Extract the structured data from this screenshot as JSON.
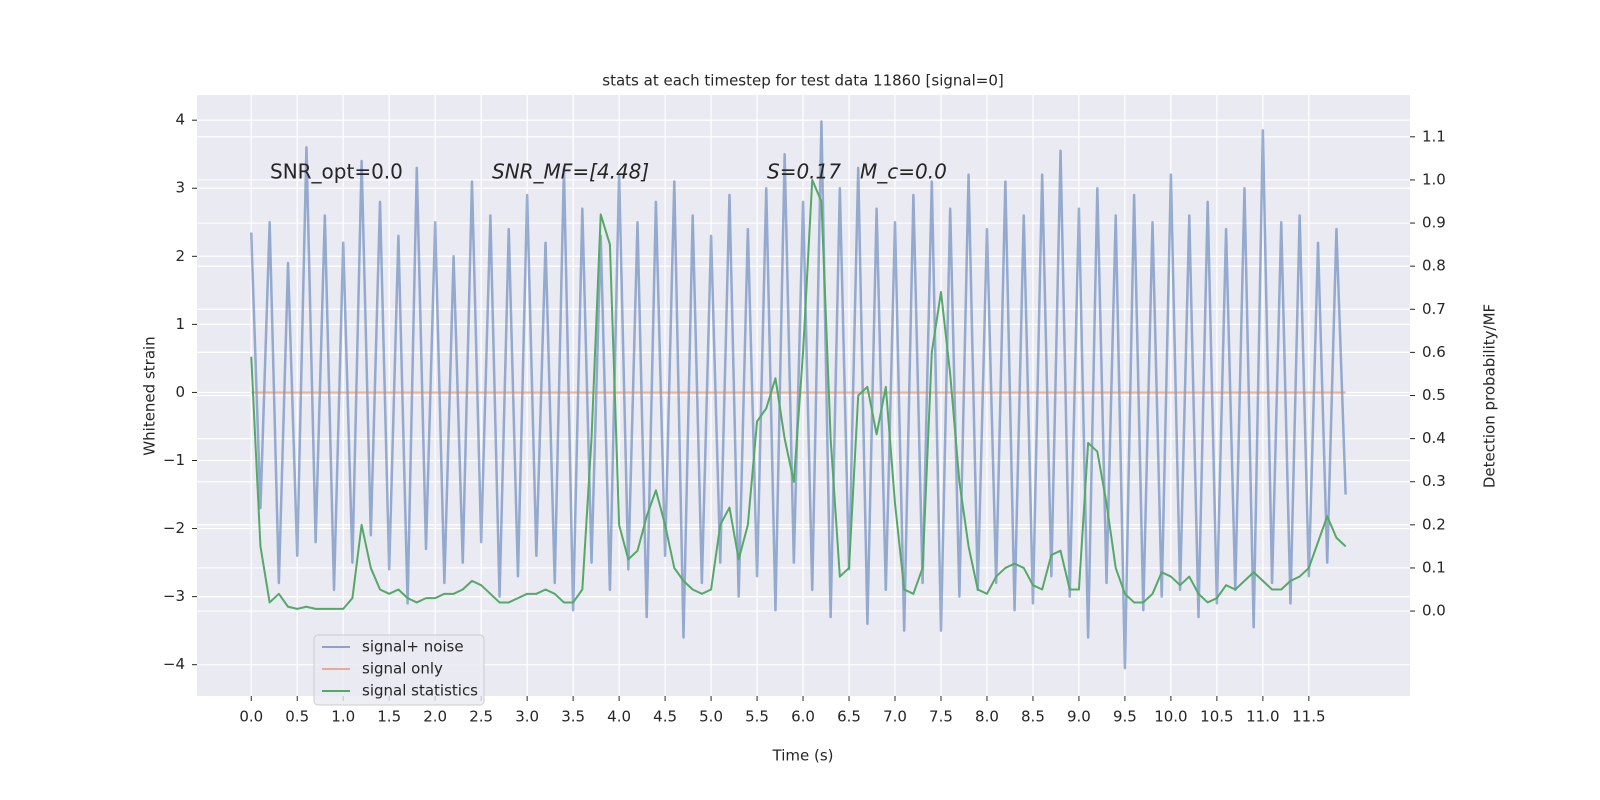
{
  "chart_data": {
    "type": "line",
    "title": "stats at each timestep for test data 11860 [signal=0]",
    "xlabel": "Time (s)",
    "ylabel": "Whitened strain",
    "y2label": "Detection probability/MF",
    "annotations": [
      "SNR_opt=0.0",
      "SNR_MF=[4.48]",
      "S=0.17",
      "M_c=0.0"
    ],
    "grid": true,
    "legend": "lower left",
    "xlim": [
      -0.59,
      12.6
    ],
    "ylim": [
      -4.46,
      4.37
    ],
    "y2lim": [
      -0.197,
      1.197
    ],
    "xticks": [
      {
        "value": 0,
        "label": "0.0"
      },
      0.5,
      {
        "value": 1,
        "label": "1.0"
      },
      1.5,
      {
        "value": 2,
        "label": "2.0"
      },
      2.5,
      {
        "value": 3,
        "label": "3.0"
      },
      3.5,
      {
        "value": 4,
        "label": "4.0"
      },
      4.5,
      {
        "value": 5,
        "label": "5.0"
      },
      5.5,
      {
        "value": 6,
        "label": "6.0"
      },
      6.5,
      {
        "value": 7,
        "label": "7.0"
      },
      7.5,
      {
        "value": 8,
        "label": "8.0"
      },
      8.5,
      {
        "value": 9,
        "label": "9.0"
      },
      9.5,
      {
        "value": 10,
        "label": "10.0"
      },
      10.5,
      {
        "value": 11,
        "label": "11.0"
      },
      11.5
    ],
    "yticks": [
      {
        "value": -4,
        "label": "−4"
      },
      {
        "value": -3,
        "label": "−3"
      },
      {
        "value": -2,
        "label": "−2"
      },
      {
        "value": -1,
        "label": "−1"
      },
      0,
      1,
      2,
      3,
      4
    ],
    "y2ticks": [
      {
        "value": 0,
        "label": "0.0"
      },
      0.1,
      0.2,
      0.3,
      0.4,
      0.5,
      0.6,
      0.7,
      0.8,
      0.9,
      {
        "value": 1,
        "label": "1.0"
      },
      1.1
    ],
    "x": [
      0,
      0.1,
      0.2,
      0.3,
      0.4,
      0.5,
      0.6,
      0.7,
      0.8,
      0.9,
      1,
      1.1,
      1.2,
      1.3,
      1.4,
      1.5,
      1.6,
      1.7,
      1.8,
      1.9,
      2,
      2.1,
      2.2,
      2.3,
      2.4,
      2.5,
      2.6,
      2.7,
      2.8,
      2.9,
      3,
      3.1,
      3.2,
      3.3,
      3.4,
      3.5,
      3.6,
      3.7,
      3.8,
      3.9,
      4,
      4.1,
      4.2,
      4.3,
      4.4,
      4.5,
      4.6,
      4.7,
      4.8,
      4.9,
      5,
      5.1,
      5.2,
      5.3,
      5.4,
      5.5,
      5.6,
      5.7,
      5.8,
      5.9,
      6,
      6.1,
      6.2,
      6.3,
      6.4,
      6.5,
      6.6,
      6.7,
      6.8,
      6.9,
      7,
      7.1,
      7.2,
      7.3,
      7.4,
      7.5,
      7.6,
      7.7,
      7.8,
      7.9,
      8,
      8.1,
      8.2,
      8.3,
      8.4,
      8.5,
      8.6,
      8.7,
      8.8,
      8.9,
      9,
      9.1,
      9.2,
      9.3,
      9.4,
      9.5,
      9.6,
      9.7,
      9.8,
      9.9,
      10,
      10.1,
      10.2,
      10.3,
      10.4,
      10.5,
      10.6,
      10.7,
      10.8,
      10.9,
      11,
      11.1,
      11.2,
      11.3,
      11.4,
      11.5,
      11.6,
      11.7,
      11.8,
      11.9
    ],
    "series": [
      {
        "name": "signal+ noise",
        "color": "#4c72b0",
        "values": [
          2.35,
          -1.7,
          2.5,
          -2.8,
          1.9,
          -2.4,
          3.6,
          -2.2,
          2.6,
          -2.9,
          2.2,
          -2.5,
          3.4,
          -2.1,
          2.8,
          -2.6,
          2.3,
          -3.1,
          3.3,
          -2.3,
          2.5,
          -2.8,
          2.0,
          -2.5,
          3.1,
          -2.2,
          2.6,
          -3.0,
          2.4,
          -2.7,
          2.9,
          -2.4,
          2.2,
          -2.8,
          3.3,
          -3.2,
          2.7,
          -2.5,
          2.3,
          -2.9,
          3.2,
          -2.6,
          2.5,
          -3.3,
          2.8,
          -2.4,
          3.1,
          -3.6,
          2.6,
          -2.8,
          2.3,
          -2.5,
          2.9,
          -3.0,
          2.4,
          -2.7,
          3.0,
          -3.2,
          3.5,
          -2.5,
          2.8,
          -2.9,
          3.98,
          -3.3,
          3.0,
          -2.6,
          3.3,
          -3.4,
          2.7,
          -2.9,
          2.5,
          -3.5,
          2.9,
          -2.8,
          3.1,
          -3.5,
          2.7,
          -3.0,
          3.2,
          -2.9,
          2.4,
          -2.8,
          3.1,
          -3.2,
          2.6,
          -3.1,
          3.2,
          -2.7,
          3.55,
          -3.0,
          2.7,
          -3.6,
          3.0,
          -2.8,
          2.6,
          -4.05,
          2.9,
          -3.2,
          2.5,
          -3.0,
          3.2,
          -2.9,
          2.6,
          -3.3,
          2.8,
          -3.1,
          2.4,
          -2.9,
          3.0,
          -3.45,
          3.85,
          -2.8,
          2.5,
          -3.1,
          2.6,
          -2.7,
          2.2,
          -2.5,
          2.4,
          -1.5
        ]
      },
      {
        "name": "signal only",
        "color": "#dd8452",
        "values": [
          0,
          0,
          0,
          0,
          0,
          0,
          0,
          0,
          0,
          0,
          0,
          0,
          0,
          0,
          0,
          0,
          0,
          0,
          0,
          0,
          0,
          0,
          0,
          0,
          0,
          0,
          0,
          0,
          0,
          0,
          0,
          0,
          0,
          0,
          0,
          0,
          0,
          0,
          0,
          0,
          0,
          0,
          0,
          0,
          0,
          0,
          0,
          0,
          0,
          0,
          0,
          0,
          0,
          0,
          0,
          0,
          0,
          0,
          0,
          0,
          0,
          0,
          0,
          0,
          0,
          0,
          0,
          0,
          0,
          0,
          0,
          0,
          0,
          0,
          0,
          0,
          0,
          0,
          0,
          0,
          0,
          0,
          0,
          0,
          0,
          0,
          0,
          0,
          0,
          0,
          0,
          0,
          0,
          0,
          0,
          0,
          0,
          0,
          0,
          0,
          0,
          0,
          0,
          0,
          0,
          0,
          0,
          0,
          0,
          0,
          0,
          0,
          0,
          0,
          0,
          0,
          0,
          0,
          0,
          0
        ]
      },
      {
        "name": "signal statistics",
        "color": "#55a868",
        "axis": "y2",
        "values": [
          0.59,
          0.15,
          0.02,
          0.04,
          0.01,
          0.005,
          0.01,
          0.005,
          0.005,
          0.005,
          0.005,
          0.03,
          0.2,
          0.1,
          0.05,
          0.04,
          0.05,
          0.03,
          0.02,
          0.03,
          0.03,
          0.04,
          0.04,
          0.05,
          0.07,
          0.06,
          0.04,
          0.02,
          0.02,
          0.03,
          0.04,
          0.04,
          0.05,
          0.04,
          0.02,
          0.02,
          0.05,
          0.4,
          0.92,
          0.85,
          0.2,
          0.12,
          0.14,
          0.22,
          0.28,
          0.2,
          0.1,
          0.07,
          0.05,
          0.04,
          0.05,
          0.2,
          0.24,
          0.12,
          0.2,
          0.44,
          0.47,
          0.54,
          0.4,
          0.3,
          0.6,
          1.0,
          0.95,
          0.4,
          0.08,
          0.1,
          0.5,
          0.52,
          0.41,
          0.52,
          0.25,
          0.05,
          0.04,
          0.1,
          0.6,
          0.74,
          0.55,
          0.3,
          0.15,
          0.05,
          0.04,
          0.08,
          0.1,
          0.11,
          0.1,
          0.06,
          0.05,
          0.13,
          0.14,
          0.05,
          0.05,
          0.39,
          0.37,
          0.25,
          0.1,
          0.04,
          0.02,
          0.02,
          0.04,
          0.09,
          0.08,
          0.06,
          0.08,
          0.04,
          0.02,
          0.03,
          0.06,
          0.05,
          0.07,
          0.09,
          0.07,
          0.05,
          0.05,
          0.07,
          0.08,
          0.1,
          0.16,
          0.22,
          0.17,
          0.15
        ]
      }
    ]
  }
}
